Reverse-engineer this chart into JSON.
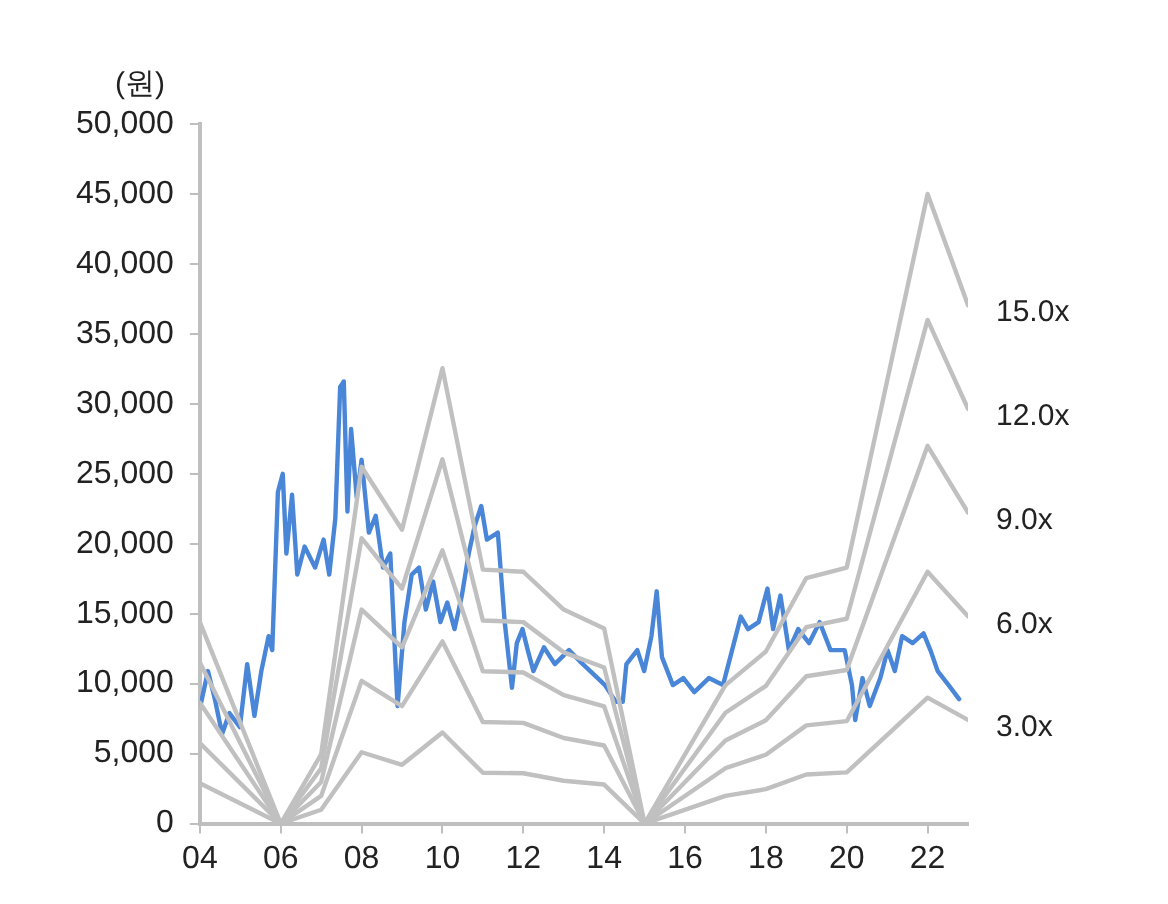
{
  "chart_data": {
    "type": "line",
    "ylabel": "(원)",
    "xlim": [
      2004,
      2023
    ],
    "xticks": [
      {
        "value": 2004,
        "label": "04"
      },
      {
        "value": 2006,
        "label": "06"
      },
      {
        "value": 2008,
        "label": "08"
      },
      {
        "value": 2010,
        "label": "10"
      },
      {
        "value": 2012,
        "label": "12"
      },
      {
        "value": 2014,
        "label": "14"
      },
      {
        "value": 2016,
        "label": "16"
      },
      {
        "value": 2018,
        "label": "18"
      },
      {
        "value": 2020,
        "label": "20"
      },
      {
        "value": 2022,
        "label": "22"
      }
    ],
    "ylim": [
      0,
      50000
    ],
    "yticks": [
      0,
      {
        "value": 5000,
        "label": "5,000"
      },
      {
        "value": 10000,
        "label": "10,000"
      },
      {
        "value": 15000,
        "label": "15,000"
      },
      {
        "value": 20000,
        "label": "20,000"
      },
      {
        "value": 25000,
        "label": "25,000"
      },
      {
        "value": 30000,
        "label": "30,000"
      },
      {
        "value": 35000,
        "label": "35,000"
      },
      {
        "value": 40000,
        "label": "40,000"
      },
      {
        "value": 45000,
        "label": "45,000"
      },
      {
        "value": 50000,
        "label": "50,000"
      }
    ],
    "grid": false,
    "legend": false,
    "marker": "none",
    "line_style": "solid",
    "series": [
      {
        "name": "15.0x",
        "color": "#c0c0c0",
        "x": [
          2004,
          2006,
          2007,
          2008,
          2009,
          2010,
          2011,
          2012,
          2013,
          2014,
          2015,
          2017,
          2018,
          2019,
          2020,
          2022,
          2023
        ],
        "values": [
          14400,
          0,
          4950,
          25500,
          21000,
          32550,
          18150,
          18000,
          15300,
          13950,
          0,
          9900,
          12300,
          17550,
          18300,
          45000,
          37050
        ]
      },
      {
        "name": "12.0x",
        "color": "#c0c0c0",
        "x": [
          2004,
          2006,
          2007,
          2008,
          2009,
          2010,
          2011,
          2012,
          2013,
          2014,
          2015,
          2017,
          2018,
          2019,
          2020,
          2022,
          2023
        ],
        "values": [
          11520,
          0,
          3960,
          20400,
          16800,
          26040,
          14520,
          14400,
          12240,
          11160,
          0,
          7920,
          9840,
          14040,
          14640,
          36000,
          29640
        ]
      },
      {
        "name": "9.0x",
        "color": "#c0c0c0",
        "x": [
          2004,
          2006,
          2007,
          2008,
          2009,
          2010,
          2011,
          2012,
          2013,
          2014,
          2015,
          2017,
          2018,
          2019,
          2020,
          2022,
          2023
        ],
        "values": [
          8640,
          0,
          2970,
          15300,
          12600,
          19530,
          10890,
          10800,
          9180,
          8370,
          0,
          5940,
          7380,
          10530,
          10980,
          27000,
          22230
        ]
      },
      {
        "name": "6.0x",
        "color": "#c0c0c0",
        "x": [
          2004,
          2006,
          2007,
          2008,
          2009,
          2010,
          2011,
          2012,
          2013,
          2014,
          2015,
          2017,
          2018,
          2019,
          2020,
          2022,
          2023
        ],
        "values": [
          5760,
          0,
          1980,
          10200,
          8400,
          13020,
          7260,
          7200,
          6120,
          5580,
          0,
          3960,
          4920,
          7020,
          7320,
          18000,
          14820
        ]
      },
      {
        "name": "3.0x",
        "color": "#c0c0c0",
        "x": [
          2004,
          2006,
          2007,
          2008,
          2009,
          2010,
          2011,
          2012,
          2013,
          2014,
          2015,
          2017,
          2018,
          2019,
          2020,
          2022,
          2023
        ],
        "values": [
          2880,
          0,
          990,
          5100,
          4200,
          6510,
          3630,
          3600,
          3060,
          2790,
          0,
          1980,
          2460,
          3510,
          3660,
          9000,
          7410
        ]
      },
      {
        "color": "#4a86d8",
        "x": [
          2004.02,
          2004.2,
          2004.37,
          2004.55,
          2004.73,
          2004.99,
          2005.17,
          2005.35,
          2005.52,
          2005.7,
          2005.79,
          2005.93,
          2006.05,
          2006.14,
          2006.28,
          2006.41,
          2006.59,
          2006.85,
          2007.06,
          2007.2,
          2007.35,
          2007.47,
          2007.56,
          2007.65,
          2007.74,
          2007.88,
          2008.0,
          2008.18,
          2008.35,
          2008.53,
          2008.71,
          2008.89,
          2009.06,
          2009.24,
          2009.42,
          2009.59,
          2009.77,
          2009.95,
          2010.12,
          2010.3,
          2010.48,
          2010.65,
          2010.8,
          2010.96,
          2011.1,
          2011.37,
          2011.54,
          2011.72,
          2011.84,
          2011.98,
          2012.11,
          2012.25,
          2012.51,
          2012.78,
          2013.13,
          2013.4,
          2013.84,
          2014.02,
          2014.29,
          2014.46,
          2014.55,
          2014.82,
          2014.99,
          2015.17,
          2015.3,
          2015.43,
          2015.7,
          2015.96,
          2016.23,
          2016.59,
          2016.94,
          2017.21,
          2017.38,
          2017.56,
          2017.82,
          2018.04,
          2018.18,
          2018.36,
          2018.57,
          2018.8,
          2019.07,
          2019.33,
          2019.6,
          2019.95,
          2020.13,
          2020.21,
          2020.39,
          2020.57,
          2020.83,
          2021.01,
          2021.19,
          2021.37,
          2021.63,
          2021.9,
          2022.07,
          2022.25,
          2022.52,
          2022.78
        ],
        "values": [
          8500,
          10900,
          8900,
          6400,
          7900,
          6900,
          11400,
          7700,
          10900,
          13400,
          12400,
          23700,
          25000,
          19300,
          23500,
          17800,
          19800,
          18300,
          20300,
          17800,
          21800,
          31200,
          31600,
          22300,
          28200,
          23300,
          26000,
          20800,
          22000,
          18300,
          19300,
          8400,
          14400,
          17800,
          18300,
          15300,
          17300,
          14400,
          15800,
          13900,
          16300,
          19300,
          21300,
          22700,
          20300,
          20800,
          14400,
          9700,
          12900,
          13900,
          12400,
          10900,
          12600,
          11400,
          12400,
          11600,
          10400,
          9900,
          8700,
          8700,
          11400,
          12400,
          10900,
          13400,
          16600,
          11900,
          9900,
          10400,
          9400,
          10400,
          9900,
          12900,
          14800,
          13900,
          14400,
          16800,
          13900,
          16300,
          12400,
          13900,
          12900,
          14400,
          12400,
          12400,
          9900,
          7400,
          10400,
          8400,
          10400,
          12400,
          10900,
          13400,
          12900,
          13600,
          12400,
          10900,
          9900,
          8900
        ]
      }
    ]
  }
}
